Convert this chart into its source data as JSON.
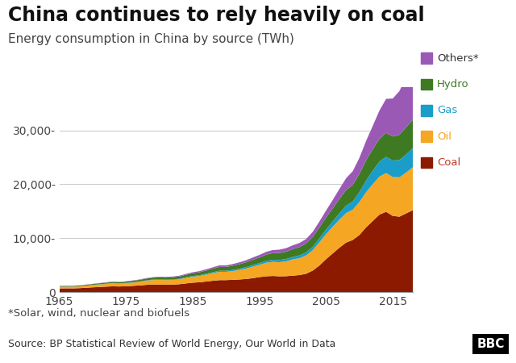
{
  "title": "China continues to rely heavily on coal",
  "subtitle": "Energy consumption in China by source (TWh)",
  "footnote": "*Solar, wind, nuclear and biofuels",
  "source": "Source: BP Statistical Review of World Energy, Our World in Data",
  "years": [
    1965,
    1966,
    1967,
    1968,
    1969,
    1970,
    1971,
    1972,
    1973,
    1974,
    1975,
    1976,
    1977,
    1978,
    1979,
    1980,
    1981,
    1982,
    1983,
    1984,
    1985,
    1986,
    1987,
    1988,
    1989,
    1990,
    1991,
    1992,
    1993,
    1994,
    1995,
    1996,
    1997,
    1998,
    1999,
    2000,
    2001,
    2002,
    2003,
    2004,
    2005,
    2006,
    2007,
    2008,
    2009,
    2010,
    2011,
    2012,
    2013,
    2014,
    2015,
    2016,
    2017,
    2018
  ],
  "coal": [
    700,
    720,
    710,
    750,
    820,
    900,
    970,
    1030,
    1090,
    1060,
    1110,
    1180,
    1250,
    1360,
    1420,
    1420,
    1400,
    1420,
    1480,
    1630,
    1770,
    1840,
    1980,
    2120,
    2240,
    2240,
    2300,
    2360,
    2450,
    2600,
    2800,
    2950,
    3010,
    2950,
    2970,
    3070,
    3180,
    3420,
    4010,
    4950,
    6130,
    7200,
    8250,
    9200,
    9680,
    10610,
    12020,
    13200,
    14380,
    14900,
    14130,
    14000,
    14600,
    15200
  ],
  "oil": [
    300,
    310,
    315,
    340,
    390,
    430,
    470,
    510,
    570,
    530,
    560,
    610,
    680,
    760,
    840,
    860,
    840,
    860,
    910,
    1020,
    1100,
    1170,
    1280,
    1410,
    1540,
    1540,
    1620,
    1770,
    1930,
    2140,
    2270,
    2500,
    2610,
    2610,
    2740,
    3000,
    3130,
    3390,
    3780,
    4310,
    4640,
    4950,
    5210,
    5470,
    5600,
    6120,
    6520,
    6830,
    7050,
    7180,
    7200,
    7300,
    7570,
    7960
  ],
  "gas": [
    20,
    20,
    20,
    22,
    25,
    28,
    32,
    38,
    44,
    44,
    50,
    56,
    62,
    70,
    80,
    88,
    90,
    96,
    102,
    114,
    128,
    140,
    158,
    176,
    198,
    200,
    218,
    236,
    262,
    288,
    320,
    358,
    390,
    415,
    442,
    474,
    512,
    568,
    640,
    736,
    848,
    992,
    1182,
    1376,
    1536,
    1824,
    2176,
    2496,
    2784,
    3008,
    3072,
    3200,
    3360,
    3520
  ],
  "hydro": [
    120,
    124,
    125,
    130,
    139,
    156,
    172,
    192,
    211,
    216,
    240,
    264,
    288,
    324,
    355,
    372,
    384,
    403,
    427,
    468,
    516,
    547,
    595,
    648,
    708,
    708,
    768,
    828,
    900,
    972,
    1044,
    1140,
    1224,
    1296,
    1356,
    1440,
    1536,
    1632,
    1800,
    1992,
    2208,
    2400,
    2640,
    2880,
    3072,
    3360,
    3720,
    3960,
    4200,
    4440,
    4440,
    4680,
    5040,
    5280
  ],
  "others": [
    30,
    30,
    30,
    30,
    36,
    42,
    48,
    54,
    60,
    60,
    66,
    72,
    78,
    90,
    102,
    114,
    120,
    132,
    144,
    165,
    186,
    204,
    228,
    255,
    285,
    285,
    315,
    345,
    384,
    426,
    474,
    525,
    576,
    615,
    654,
    705,
    765,
    840,
    960,
    1125,
    1320,
    1560,
    1860,
    2190,
    2550,
    3000,
    3600,
    4350,
    5250,
    6300,
    7050,
    8100,
    9300,
    10800
  ],
  "colors": {
    "coal": "#8B1A00",
    "oil": "#F5A623",
    "gas": "#1B9DC9",
    "hydro": "#3D7A22",
    "others": "#9B59B6"
  },
  "legend_items": [
    {
      "label": "Others*",
      "color": "#9B59B6",
      "text_color": "#333333"
    },
    {
      "label": "Hydro",
      "color": "#3D7A22",
      "text_color": "#3D7A22"
    },
    {
      "label": "Gas",
      "color": "#1B9DC9",
      "text_color": "#1B9DC9"
    },
    {
      "label": "Oil",
      "color": "#F5A623",
      "text_color": "#F5A623"
    },
    {
      "label": "Coal",
      "color": "#8B1A00",
      "text_color": "#c0392b"
    }
  ],
  "ylim": [
    0,
    38000
  ],
  "yticks": [
    0,
    10000,
    20000,
    30000
  ],
  "ytick_labels": [
    "0",
    "10,000-",
    "20,000-",
    "30,000-"
  ],
  "xticks": [
    1965,
    1975,
    1985,
    1995,
    2005,
    2015
  ],
  "bg_color": "#ffffff",
  "footer_bg": "#e8e8e8",
  "grid_color": "#cccccc",
  "title_fontsize": 17,
  "subtitle_fontsize": 11,
  "footnote_fontsize": 9.5,
  "source_fontsize": 9,
  "tick_fontsize": 10
}
